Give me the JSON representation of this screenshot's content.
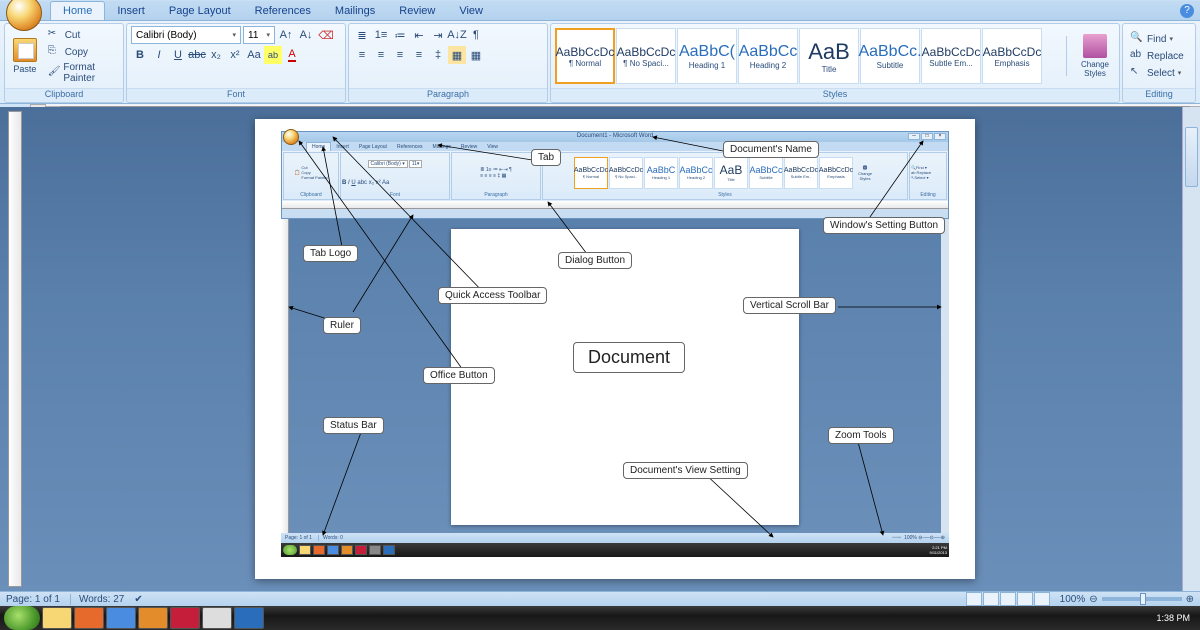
{
  "window": {
    "tabs": [
      "Home",
      "Insert",
      "Page Layout",
      "References",
      "Mailings",
      "Review",
      "View"
    ],
    "active_tab": "Home"
  },
  "ribbon": {
    "clipboard": {
      "label": "Clipboard",
      "paste": "Paste",
      "cut": "Cut",
      "copy": "Copy",
      "format_painter": "Format Painter"
    },
    "font": {
      "label": "Font",
      "name": "Calibri (Body)",
      "size": "11"
    },
    "paragraph": {
      "label": "Paragraph"
    },
    "styles": {
      "label": "Styles",
      "items": [
        {
          "preview": "AaBbCcDc",
          "name": "¶ Normal",
          "cls": ""
        },
        {
          "preview": "AaBbCcDc",
          "name": "¶ No Spaci...",
          "cls": ""
        },
        {
          "preview": "AaBbC(",
          "name": "Heading 1",
          "cls": "big"
        },
        {
          "preview": "AaBbCc",
          "name": "Heading 2",
          "cls": "big"
        },
        {
          "preview": "AaB",
          "name": "Title",
          "cls": "huge"
        },
        {
          "preview": "AaBbCc.",
          "name": "Subtitle",
          "cls": "big"
        },
        {
          "preview": "AaBbCcDc",
          "name": "Subtle Em...",
          "cls": ""
        },
        {
          "preview": "AaBbCcDc",
          "name": "Emphasis",
          "cls": ""
        }
      ],
      "change_styles": "Change Styles"
    },
    "editing": {
      "label": "Editing",
      "find": "Find",
      "replace": "Replace",
      "select": "Select"
    }
  },
  "status": {
    "page": "Page: 1 of 1",
    "words": "Words: 27",
    "zoom": "100%"
  },
  "taskbar": {
    "time": "1:38 PM",
    "date": ""
  },
  "inner": {
    "doc_name": "Document1 - Microsoft Word",
    "tabs": [
      "Home",
      "Insert",
      "Page Layout",
      "References",
      "Mailings",
      "Review",
      "View"
    ],
    "status_page": "Page: 1 of 1",
    "status_words": "Words: 0",
    "status_zoom": "100%",
    "tray_time": "2:21 PM",
    "tray_date": "9/11/2013",
    "groups": [
      "Clipboard",
      "Font",
      "Paragraph",
      "Styles",
      "Editing"
    ]
  },
  "callouts": {
    "tab": "Tab",
    "documents_name": "Document's Name",
    "tab_logo": "Tab Logo",
    "quick_access": "Quick Access Toolbar",
    "dialog_button": "Dialog Button",
    "windows_setting": "Window's Setting Button",
    "vertical_scroll": "Vertical Scroll Bar",
    "ruler": "Ruler",
    "office_button": "Office Button",
    "document": "Document",
    "status_bar": "Status Bar",
    "view_setting": "Document's View Setting",
    "zoom_tools": "Zoom Tools"
  },
  "colors": {
    "ribbon_bg": "#eaf3fb",
    "accent": "#2a6dbb",
    "docarea_bg": "#5a80ac"
  }
}
